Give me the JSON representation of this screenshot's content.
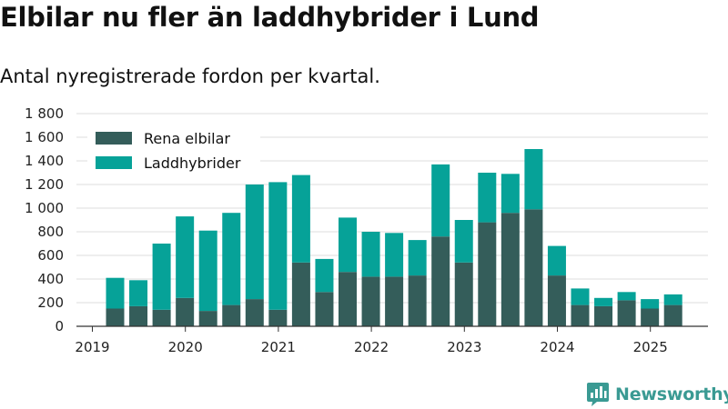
{
  "header": {
    "title": "Elbilar nu fler än laddhybrider i Lund",
    "subtitle": "Antal nyregistrerade fordon per kvartal."
  },
  "brand": {
    "name": "Newsworthy",
    "icon": "newsworthy-logo-icon",
    "color": "#3a9a93"
  },
  "chart_data": {
    "type": "bar",
    "stacked": true,
    "categories": [
      "2019 Q2",
      "2019 Q3",
      "2019 Q4",
      "2020 Q1",
      "2020 Q2",
      "2020 Q3",
      "2020 Q4",
      "2021 Q1",
      "2021 Q2",
      "2021 Q3",
      "2021 Q4",
      "2022 Q1",
      "2022 Q2",
      "2022 Q3",
      "2022 Q4",
      "2023 Q1",
      "2023 Q2",
      "2023 Q3",
      "2023 Q4",
      "2024 Q1",
      "2024 Q2",
      "2024 Q3",
      "2024 Q4",
      "2025 Q1",
      "2025 Q2"
    ],
    "series": [
      {
        "name": "Rena elbilar",
        "color": "#345d5a",
        "values": [
          150,
          170,
          140,
          240,
          130,
          180,
          230,
          140,
          540,
          290,
          460,
          420,
          420,
          430,
          760,
          540,
          880,
          960,
          990,
          430,
          180,
          170,
          220,
          150,
          180
        ]
      },
      {
        "name": "Laddhybrider",
        "color": "#06a298",
        "values": [
          260,
          220,
          560,
          690,
          680,
          780,
          970,
          1080,
          740,
          280,
          460,
          380,
          370,
          300,
          610,
          360,
          420,
          330,
          510,
          250,
          140,
          70,
          70,
          80,
          90
        ]
      }
    ],
    "x_tick_labels": [
      "2019",
      "2020",
      "2021",
      "2022",
      "2023",
      "2024",
      "2025"
    ],
    "y_ticks": [
      0,
      200,
      400,
      600,
      800,
      1000,
      1200,
      1400,
      1600,
      1800
    ],
    "y_tick_labels": [
      "0",
      "200",
      "400",
      "600",
      "800",
      "1 000",
      "1 200",
      "1 400",
      "1 600",
      "1 800"
    ],
    "ylim": [
      0,
      1800
    ],
    "grid": true,
    "legend_position": "top-left"
  }
}
